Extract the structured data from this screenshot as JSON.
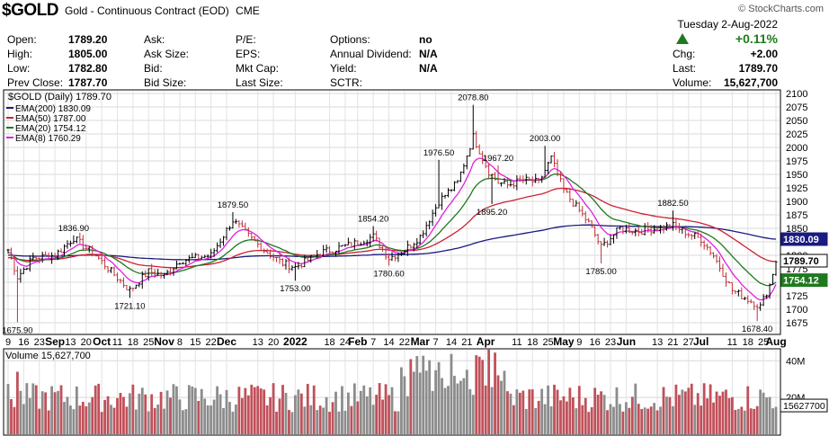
{
  "header": {
    "symbol": "$GOLD",
    "description": "Gold - Continuous Contract (EOD)",
    "exchange": "CME",
    "brand": "© StockCharts.com",
    "date": "Tuesday  2-Aug-2022",
    "change_pct": "+0.11%",
    "fields": [
      {
        "label": "Open:",
        "value": "1789.20"
      },
      {
        "label": "High:",
        "value": "1805.00"
      },
      {
        "label": "Low:",
        "value": "1782.80"
      },
      {
        "label": "Prev Close:",
        "value": "1787.70"
      },
      {
        "label": "Ask:",
        "value": ""
      },
      {
        "label": "Ask Size:",
        "value": ""
      },
      {
        "label": "Bid:",
        "value": ""
      },
      {
        "label": "Bid Size:",
        "value": ""
      },
      {
        "label": "P/E:",
        "value": ""
      },
      {
        "label": "EPS:",
        "value": ""
      },
      {
        "label": "Mkt Cap:",
        "value": ""
      },
      {
        "label": "Last Size:",
        "value": ""
      },
      {
        "label": "Options:",
        "value": "no"
      },
      {
        "label": "Annual Dividend:",
        "value": "N/A"
      },
      {
        "label": "Yield:",
        "value": "N/A"
      },
      {
        "label": "SCTR:",
        "value": ""
      },
      {
        "label": "Chg:",
        "value": "+2.00"
      },
      {
        "label": "Last:",
        "value": "1789.70"
      },
      {
        "label": "Volume:",
        "value": "15,627,700"
      }
    ]
  },
  "colors": {
    "up": "#1f7a1f",
    "ema200": "#1a1a80",
    "ema50": "#cc2233",
    "ema20": "#1f7a1f",
    "ema8": "#e020e0",
    "vol_up": "#c0505a",
    "vol_down": "#8c8c8c"
  },
  "chart_data": {
    "type": "candlestick",
    "price_title": "$GOLD (Daily) 1789.70",
    "legend": [
      {
        "name": "EMA(200) 1830.09",
        "color": "#1a1a80"
      },
      {
        "name": "EMA(50) 1787.00",
        "color": "#cc2233"
      },
      {
        "name": "EMA(20) 1754.12",
        "color": "#1f7a1f"
      },
      {
        "name": "EMA(8) 1760.29",
        "color": "#e020e0"
      }
    ],
    "ylim": [
      1655,
      2105
    ],
    "yticks": [
      1675,
      1700,
      1725,
      1750,
      1775,
      1800,
      1825,
      1850,
      1875,
      1900,
      1925,
      1950,
      1975,
      2000,
      2025,
      2050,
      2075,
      2100
    ],
    "x_labels": [
      "9",
      "16",
      "23",
      "Sep",
      "13",
      "20",
      "Oct",
      "11",
      "18",
      "25",
      "Nov",
      "8",
      "15",
      "22",
      "Dec",
      "13",
      "20",
      "2022",
      "18",
      "24",
      "Feb",
      "7",
      "14",
      "22",
      "Mar",
      "7",
      "14",
      "21",
      "Apr",
      "11",
      "18",
      "25",
      "May",
      "9",
      "16",
      "23",
      "Jun",
      "13",
      "21",
      "27",
      "Jul",
      "11",
      "18",
      "25",
      "Aug"
    ],
    "x_label_index": [
      0,
      5,
      10,
      15,
      20,
      25,
      30,
      35,
      40,
      45,
      50,
      55,
      60,
      65,
      70,
      80,
      85,
      92,
      103,
      108,
      112,
      117,
      122,
      127,
      132,
      137,
      142,
      147,
      153,
      163,
      168,
      173,
      178,
      183,
      188,
      193,
      198,
      208,
      213,
      218,
      222,
      232,
      237,
      242,
      246
    ],
    "annotations": [
      {
        "text": "1675.90",
        "i": 3,
        "v": 1676
      },
      {
        "text": "1836.90",
        "i": 21,
        "v": 1837
      },
      {
        "text": "1721.10",
        "i": 39,
        "v": 1721
      },
      {
        "text": "1879.50",
        "i": 72,
        "v": 1880
      },
      {
        "text": "1753.00",
        "i": 92,
        "v": 1753
      },
      {
        "text": "1854.20",
        "i": 117,
        "v": 1854
      },
      {
        "text": "1780.60",
        "i": 122,
        "v": 1781
      },
      {
        "text": "1976.50",
        "i": 138,
        "v": 1977
      },
      {
        "text": "2078.80",
        "i": 149,
        "v": 2079
      },
      {
        "text": "1967.20",
        "i": 157,
        "v": 1967
      },
      {
        "text": "1895.20",
        "i": 155,
        "v": 1895
      },
      {
        "text": "2003.00",
        "i": 172,
        "v": 2003
      },
      {
        "text": "1785.00",
        "i": 190,
        "v": 1785
      },
      {
        "text": "1882.50",
        "i": 213,
        "v": 1883
      },
      {
        "text": "1678.40",
        "i": 240,
        "v": 1678
      }
    ],
    "anchors": [
      [
        0,
        1810
      ],
      [
        3,
        1760
      ],
      [
        8,
        1795
      ],
      [
        15,
        1800
      ],
      [
        21,
        1832
      ],
      [
        28,
        1800
      ],
      [
        33,
        1770
      ],
      [
        39,
        1735
      ],
      [
        45,
        1770
      ],
      [
        50,
        1762
      ],
      [
        55,
        1790
      ],
      [
        65,
        1800
      ],
      [
        72,
        1865
      ],
      [
        78,
        1830
      ],
      [
        82,
        1810
      ],
      [
        88,
        1785
      ],
      [
        92,
        1778
      ],
      [
        100,
        1805
      ],
      [
        110,
        1820
      ],
      [
        117,
        1835
      ],
      [
        122,
        1795
      ],
      [
        127,
        1810
      ],
      [
        132,
        1835
      ],
      [
        138,
        1900
      ],
      [
        144,
        1935
      ],
      [
        149,
        2020
      ],
      [
        154,
        1955
      ],
      [
        157,
        1935
      ],
      [
        160,
        1930
      ],
      [
        165,
        1940
      ],
      [
        170,
        1935
      ],
      [
        174,
        1980
      ],
      [
        178,
        1920
      ],
      [
        182,
        1890
      ],
      [
        186,
        1860
      ],
      [
        190,
        1815
      ],
      [
        196,
        1850
      ],
      [
        202,
        1845
      ],
      [
        208,
        1850
      ],
      [
        213,
        1855
      ],
      [
        218,
        1840
      ],
      [
        222,
        1830
      ],
      [
        226,
        1800
      ],
      [
        232,
        1735
      ],
      [
        238,
        1715
      ],
      [
        241,
        1705
      ],
      [
        244,
        1745
      ],
      [
        246,
        1790
      ]
    ],
    "volume": {
      "title": "Volume 15,627,700",
      "ylim": [
        0,
        46000000
      ],
      "yticks": [
        {
          "v": 20000000,
          "label": "20M"
        },
        {
          "v": 40000000,
          "label": "40M"
        }
      ],
      "last": "15627700"
    },
    "price_tags": [
      {
        "label": "1830.09",
        "v": 1830,
        "color": "#1a1a80"
      },
      {
        "label": "1789.70",
        "v": 1790,
        "color": "#000000"
      },
      {
        "label": "1754.12",
        "v": 1754,
        "color": "#1f7a1f"
      }
    ]
  }
}
